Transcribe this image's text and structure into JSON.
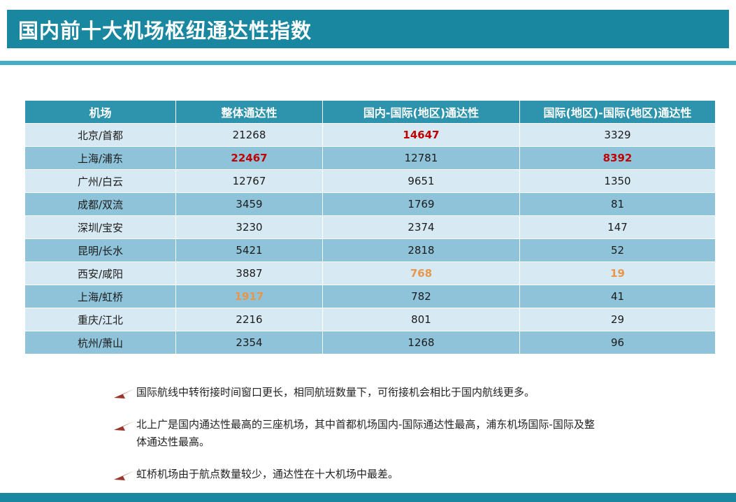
{
  "slide": {
    "title": "国内前十大机场枢纽通达性指数"
  },
  "table": {
    "columns": [
      "机场",
      "整体通达性",
      "国内-国际(地区)通达性",
      "国际(地区)-国际(地区)通达性"
    ],
    "rows": [
      {
        "cells": [
          {
            "t": "北京/首都"
          },
          {
            "t": "21268"
          },
          {
            "t": "14647",
            "hl": "red"
          },
          {
            "t": "3329"
          }
        ]
      },
      {
        "cells": [
          {
            "t": "上海/浦东"
          },
          {
            "t": "22467",
            "hl": "red"
          },
          {
            "t": "12781"
          },
          {
            "t": "8392",
            "hl": "red"
          }
        ]
      },
      {
        "cells": [
          {
            "t": "广州/白云"
          },
          {
            "t": "12767"
          },
          {
            "t": "9651"
          },
          {
            "t": "1350"
          }
        ]
      },
      {
        "cells": [
          {
            "t": "成都/双流"
          },
          {
            "t": "3459"
          },
          {
            "t": "1769"
          },
          {
            "t": "81"
          }
        ]
      },
      {
        "cells": [
          {
            "t": "深圳/宝安"
          },
          {
            "t": "3230"
          },
          {
            "t": "2374"
          },
          {
            "t": "147"
          }
        ]
      },
      {
        "cells": [
          {
            "t": "昆明/长水"
          },
          {
            "t": "5421"
          },
          {
            "t": "2818"
          },
          {
            "t": "52"
          }
        ]
      },
      {
        "cells": [
          {
            "t": "西安/咸阳"
          },
          {
            "t": "3887"
          },
          {
            "t": "768",
            "hl": "orange"
          },
          {
            "t": "19",
            "hl": "orange"
          }
        ]
      },
      {
        "cells": [
          {
            "t": "上海/虹桥"
          },
          {
            "t": "1917",
            "hl": "orange"
          },
          {
            "t": "782"
          },
          {
            "t": "41"
          }
        ]
      },
      {
        "cells": [
          {
            "t": "重庆/江北"
          },
          {
            "t": "2216"
          },
          {
            "t": "801"
          },
          {
            "t": "29"
          }
        ]
      },
      {
        "cells": [
          {
            "t": "杭州/萧山"
          },
          {
            "t": "2354"
          },
          {
            "t": "1268"
          },
          {
            "t": "96"
          }
        ]
      }
    ]
  },
  "bullets": [
    "国际航线中转衔接时间窗口更长，相同航班数量下，可衔接机会相比于国内航线更多。",
    "北上广是国内通达性最高的三座机场，其中首都机场国内-国际通达性最高，浦东机场国际-国际及整体通达性最高。",
    "虹桥机场由于航点数量较少，通达性在十大机场中最差。"
  ],
  "colors": {
    "titlebar": "#1A87A1",
    "accent": "#43AEC3",
    "header": "#2E93AC",
    "rowLight": "#D7E9F2",
    "rowMed": "#8FC3D9",
    "red": "#C00000",
    "orange": "#E8964B",
    "iconRed": "#9B352C"
  },
  "chart_data": {
    "type": "table",
    "title": "国内前十大机场枢纽通达性指数",
    "columns": [
      "机场",
      "整体通达性",
      "国内-国际(地区)通达性",
      "国际(地区)-国际(地区)通达性"
    ],
    "rows": [
      [
        "北京/首都",
        21268,
        14647,
        3329
      ],
      [
        "上海/浦东",
        22467,
        12781,
        8392
      ],
      [
        "广州/白云",
        12767,
        9651,
        1350
      ],
      [
        "成都/双流",
        3459,
        1769,
        81
      ],
      [
        "深圳/宝安",
        3230,
        2374,
        147
      ],
      [
        "昆明/长水",
        5421,
        2818,
        52
      ],
      [
        "西安/咸阳",
        3887,
        768,
        19
      ],
      [
        "上海/虹桥",
        1917,
        782,
        41
      ],
      [
        "重庆/江北",
        2216,
        801,
        29
      ],
      [
        "杭州/萧山",
        2354,
        1268,
        96
      ]
    ]
  }
}
